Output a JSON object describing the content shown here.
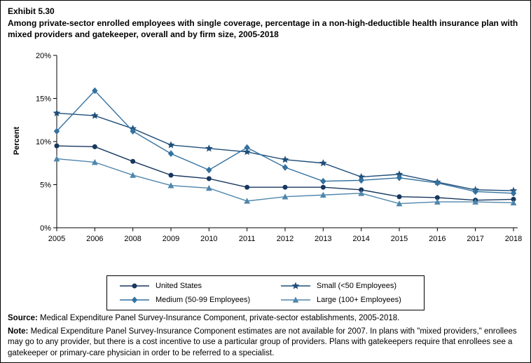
{
  "exhibit": {
    "number": "Exhibit 5.30",
    "title": "Among private-sector enrolled employees with single coverage, percentage in a non-high-deductible health insurance plan with mixed providers and gatekeeper, overall and by firm size, 2005-2018"
  },
  "chart_data": {
    "type": "line",
    "title": "Percentage in a non-high-deductible health insurance plan with mixed providers and gatekeeper, 2005-2018",
    "categories": [
      "2005",
      "2006",
      "2008",
      "2009",
      "2010",
      "2011",
      "2012",
      "2013",
      "2014",
      "2015",
      "2016",
      "2017",
      "2018"
    ],
    "series": [
      {
        "name": "United States",
        "marker": "circle",
        "color": "#17375e",
        "values": [
          9.5,
          9.4,
          7.7,
          6.1,
          5.7,
          4.7,
          4.7,
          4.7,
          4.4,
          3.6,
          3.5,
          3.2,
          3.3
        ]
      },
      {
        "name": "Small (<50 Employees)",
        "marker": "star",
        "color": "#1f4e79",
        "values": [
          13.3,
          13.0,
          11.5,
          9.6,
          9.2,
          8.8,
          7.9,
          7.5,
          5.9,
          6.2,
          5.3,
          4.4,
          4.3
        ]
      },
      {
        "name": "Medium (50-99 Employees)",
        "marker": "diamond",
        "color": "#33719f",
        "values": [
          11.2,
          15.9,
          11.2,
          8.6,
          6.7,
          9.3,
          7.0,
          5.4,
          5.5,
          5.8,
          5.2,
          4.2,
          4.0
        ]
      },
      {
        "name": "Large (100+ Employees)",
        "marker": "triangle",
        "color": "#4f86ab",
        "values": [
          8.0,
          7.6,
          6.1,
          4.9,
          4.6,
          3.1,
          3.6,
          3.8,
          4.0,
          2.8,
          3.0,
          3.0,
          2.9
        ]
      }
    ],
    "xlabel": "",
    "ylabel": "Percent",
    "ylim": [
      0,
      20
    ],
    "yticks": [
      0,
      5,
      10,
      15,
      20
    ],
    "ytick_labels": [
      "0%",
      "5%",
      "10%",
      "15%",
      "20%"
    ],
    "grid": false,
    "legend_position": "bottom"
  },
  "footer": {
    "source_label": "Source:",
    "source_text": " Medical Expenditure Panel Survey-Insurance Component, private-sector establishments, 2005-2018.",
    "note_label": "Note:",
    "note_text": " Medical Expenditure Panel Survey-Insurance Component estimates are not available for 2007. In plans with \"mixed providers,\" enrollees may go to any provider, but there is a cost incentive to use a particular group of providers. Plans with gatekeepers require that enrollees see a gatekeeper or primary-care physician in order to be referred to a specialist."
  }
}
